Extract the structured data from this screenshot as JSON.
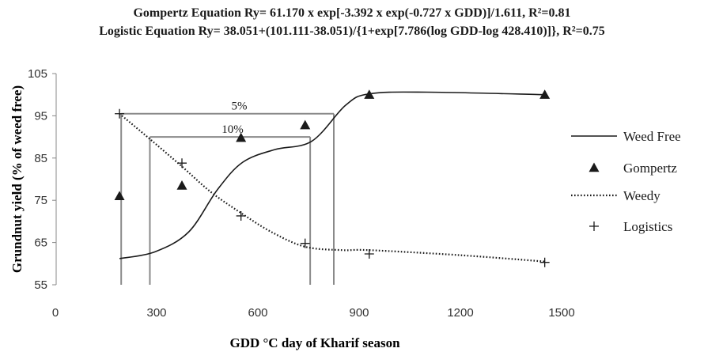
{
  "chart_data": {
    "type": "line",
    "title_lines": [
      "Gompertz Equation Ry= 61.170 x exp[-3.392 x exp(-0.727 x GDD)]/1.611, R²=0.81",
      "Logistic Equation Ry= 38.051+(101.111-38.051)/{1+exp[7.786(log GDD-log 428.410)]}, R²=0.75"
    ],
    "xlabel": "GDD °C day of Kharif season",
    "ylabel": "Grundnut yield (% of weed free)",
    "xlim": [
      0,
      1500
    ],
    "ylim": [
      55,
      105
    ],
    "xticks": [
      0,
      300,
      600,
      900,
      1200,
      1500
    ],
    "yticks": [
      55,
      65,
      75,
      85,
      95,
      105
    ],
    "grid": false,
    "legend_position": "right",
    "series": [
      {
        "name": "Weed Free",
        "style": "solid-line",
        "color": "#1a1a1a",
        "x": [
          190,
          295,
          395,
          480,
          555,
          650,
          760,
          860,
          930,
          1100,
          1450
        ],
        "y": [
          61.2,
          62.8,
          67.5,
          77.5,
          84.0,
          87.0,
          89.0,
          97.5,
          100.2,
          100.6,
          100.0
        ]
      },
      {
        "name": "Gompertz",
        "style": "triangle-markers",
        "color": "#1a1a1a",
        "x": [
          190,
          375,
          550,
          740,
          930,
          1450
        ],
        "y": [
          76.0,
          78.5,
          89.8,
          92.8,
          100.0,
          100.0
        ]
      },
      {
        "name": "Weedy",
        "style": "dotted-line",
        "color": "#1a1a1a",
        "x": [
          190,
          280,
          375,
          460,
          550,
          640,
          740,
          850,
          930,
          1200,
          1450
        ],
        "y": [
          95.5,
          89.5,
          83.0,
          77.0,
          72.0,
          67.5,
          64.0,
          63.2,
          63.2,
          62.0,
          60.5
        ]
      },
      {
        "name": "Logistics",
        "style": "plus-markers",
        "color": "#1a1a1a",
        "x": [
          190,
          375,
          550,
          740,
          930,
          1450
        ],
        "y": [
          95.5,
          83.8,
          71.3,
          64.8,
          62.3,
          60.3
        ]
      }
    ],
    "annotations": [
      {
        "label": "5%",
        "y": 95.5,
        "x_range": [
          195,
          825
        ],
        "label_x": 545,
        "drops_x": [
          195,
          825
        ]
      },
      {
        "label": "10%",
        "y": 90.0,
        "x_range": [
          280,
          755
        ],
        "label_x": 525,
        "drops_x": [
          280,
          755
        ]
      }
    ]
  }
}
